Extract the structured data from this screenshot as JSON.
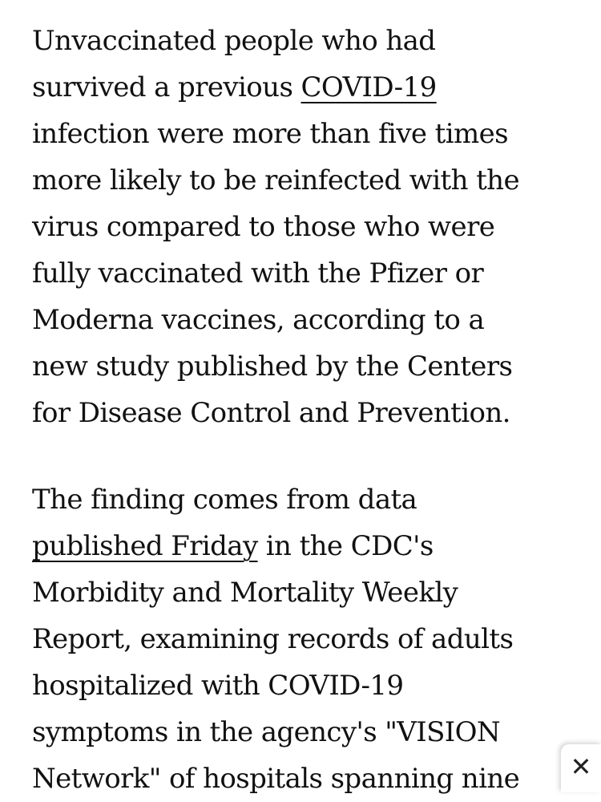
{
  "article": {
    "paragraph1": {
      "line1": "Unvaccinated people who had",
      "line2_pre": "survived a previous ",
      "line2_link": "COVID-19",
      "line3": "infection were more than five times",
      "line4": "more likely to be reinfected with the",
      "line5": "virus compared to those who were",
      "line6": "fully vaccinated with the Pfizer or",
      "line7": "Moderna vaccines, according to a",
      "line8": "new study published by the Centers",
      "line9": "for Disease Control and Prevention."
    },
    "paragraph2": {
      "line1": "The finding comes from data",
      "line2_link": "published Friday",
      "line2_post": " in the CDC's",
      "line3": "Morbidity and Mortality Weekly",
      "line4": "Report, examining records of adults",
      "line5": "hospitalized with COVID-19",
      "line6": "symptoms in the agency's \"VISION",
      "line7": "Network\" of hospitals spanning nine"
    }
  },
  "close_button": {
    "icon": "close-icon",
    "glyph": "✕"
  }
}
